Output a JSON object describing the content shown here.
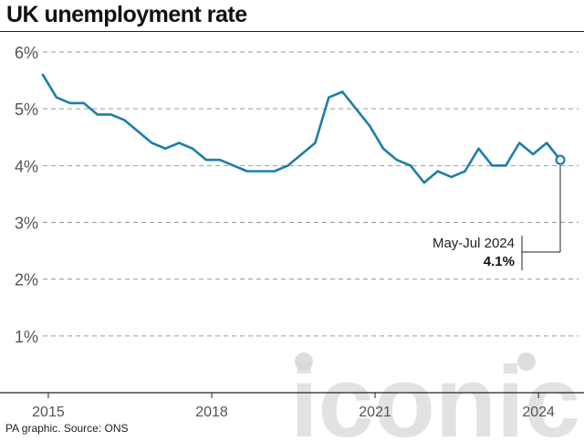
{
  "title": "UK unemployment rate",
  "source": "PA graphic. Source: ONS",
  "callout": {
    "label": "May-Jul 2024",
    "value": "4.1%"
  },
  "watermark": {
    "text": "iconic",
    "color": "#d9d9d9"
  },
  "colors": {
    "line": "#1b7fa6",
    "grid": "#9a9a9a",
    "axis": "#222222",
    "text": "#555555"
  },
  "chart_data": {
    "type": "line",
    "title": "UK unemployment rate",
    "xlabel": "",
    "ylabel": "",
    "xlim": [
      2014.9,
      2024.4
    ],
    "ylim": [
      0,
      6
    ],
    "grid": true,
    "y_ticks": [
      1,
      2,
      3,
      4,
      5,
      6
    ],
    "y_tick_labels": [
      "1%",
      "2%",
      "3%",
      "4%",
      "5%",
      "6%"
    ],
    "x_ticks": [
      2015,
      2018,
      2021,
      2024
    ],
    "x_tick_labels": [
      "2015",
      "2018",
      "2021",
      "2024"
    ],
    "series": [
      {
        "color": "#1b7fa6",
        "x": [
          2014.9,
          2015.15,
          2015.4,
          2015.65,
          2015.9,
          2016.15,
          2016.4,
          2016.65,
          2016.9,
          2017.15,
          2017.4,
          2017.65,
          2017.9,
          2018.15,
          2018.4,
          2018.65,
          2018.9,
          2019.15,
          2019.4,
          2019.65,
          2019.9,
          2020.15,
          2020.4,
          2020.65,
          2020.9,
          2021.15,
          2021.4,
          2021.65,
          2021.9,
          2022.15,
          2022.4,
          2022.65,
          2022.9,
          2023.15,
          2023.4,
          2023.65,
          2023.9,
          2024.15,
          2024.4
        ],
        "y": [
          5.6,
          5.2,
          5.1,
          5.1,
          4.9,
          4.9,
          4.8,
          4.6,
          4.4,
          4.3,
          4.4,
          4.3,
          4.1,
          4.1,
          4.0,
          3.9,
          3.9,
          3.9,
          4.0,
          4.2,
          4.4,
          5.2,
          5.3,
          5.0,
          4.7,
          4.3,
          4.1,
          4.0,
          3.7,
          3.9,
          3.8,
          3.9,
          4.3,
          4.0,
          4.0,
          4.4,
          4.2,
          4.4,
          4.1
        ]
      }
    ],
    "highlight": {
      "x": 2024.4,
      "y": 4.1
    }
  }
}
